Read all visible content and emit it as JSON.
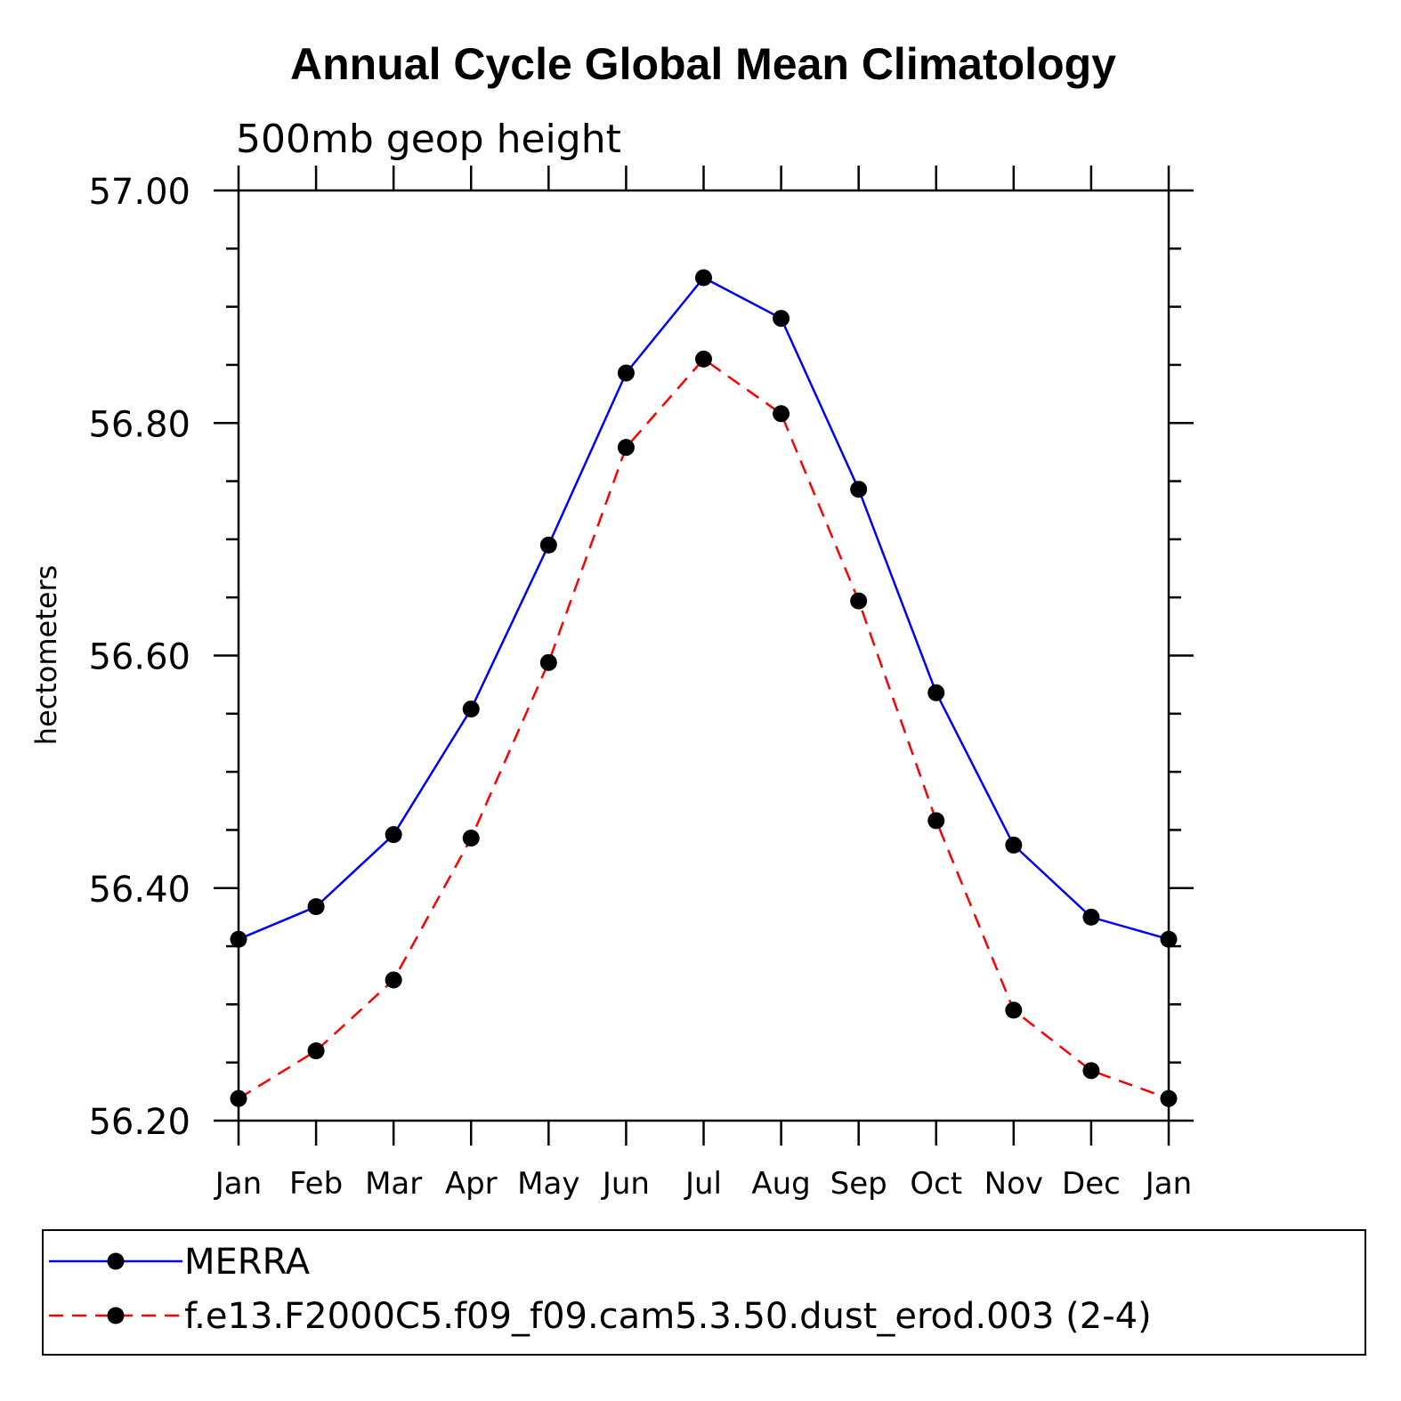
{
  "chart_data": {
    "type": "line",
    "title": "Annual Cycle Global Mean Climatology",
    "subtitle": "500mb geop height",
    "xlabel": "",
    "ylabel": "hectometers",
    "categories": [
      "Jan",
      "Feb",
      "Mar",
      "Apr",
      "May",
      "Jun",
      "Jul",
      "Aug",
      "Sep",
      "Oct",
      "Nov",
      "Dec",
      "Jan"
    ],
    "ylim": [
      56.2,
      57.0
    ],
    "yticks": [
      "56.20",
      "56.40",
      "56.60",
      "56.80",
      "57.00"
    ],
    "grid": false,
    "legend_position": "bottom",
    "series": [
      {
        "name": "MERRA",
        "color": "#0000ff",
        "dash": "solid",
        "values": [
          56.356,
          56.384,
          56.446,
          56.554,
          56.695,
          56.843,
          56.925,
          56.89,
          56.743,
          56.568,
          56.437,
          56.375,
          56.356
        ]
      },
      {
        "name": "f.e13.F2000C5.f09_f09.cam5.3.50.dust_erod.003 (2-4)",
        "color": "#ff0000",
        "dash": "dashed",
        "values": [
          56.219,
          56.26,
          56.321,
          56.443,
          56.594,
          56.779,
          56.855,
          56.808,
          56.647,
          56.458,
          56.295,
          56.243,
          56.219
        ]
      }
    ]
  }
}
